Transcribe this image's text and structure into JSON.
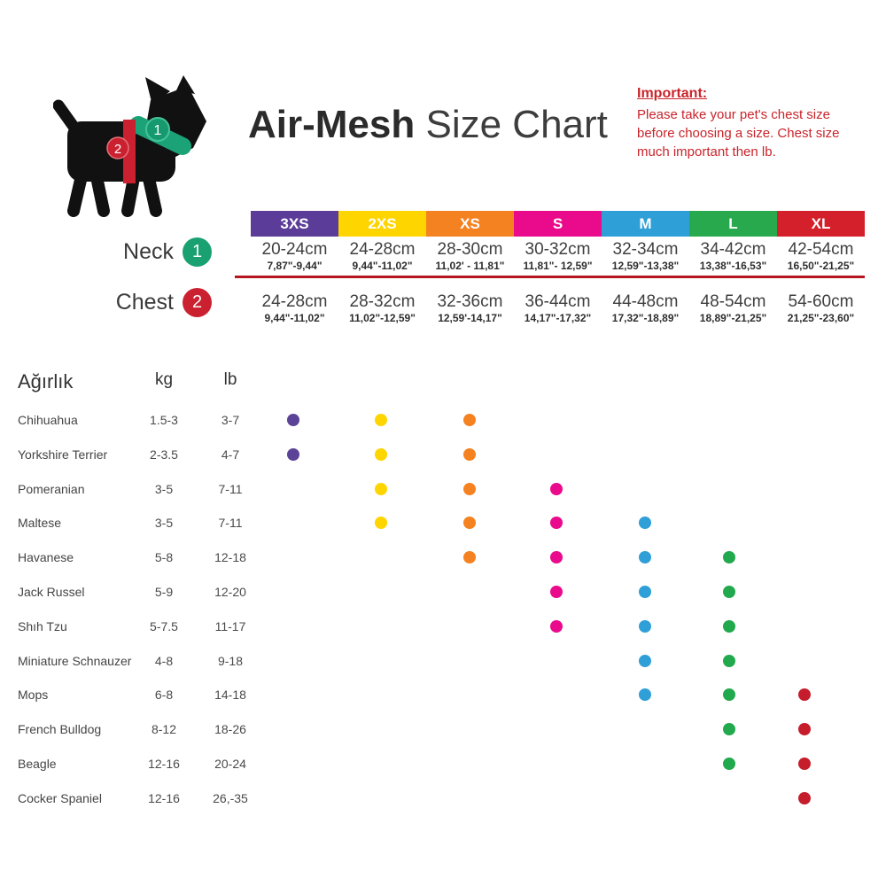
{
  "header": {
    "title_bold": "Air-Mesh",
    "title_light": " Size Chart",
    "important": {
      "heading": "Important:",
      "lines": [
        "Please take your pet's chest size",
        "before choosing a size. Chest size",
        "much important then lb."
      ],
      "color": "#c9242b"
    },
    "dog_badges": {
      "neck": "1",
      "chest": "2"
    },
    "dog_colors": {
      "body": "#111111",
      "collar": "#1ba377",
      "strap": "#cb2030"
    }
  },
  "size_table": {
    "row_labels": {
      "neck": "Neck",
      "neck_badge": "1",
      "chest": "Chest",
      "chest_badge": "2"
    },
    "badge_colors": {
      "neck": "#19a171",
      "chest": "#cb2030"
    },
    "divider_color": "#b5161f",
    "sizes": [
      {
        "label": "3XS",
        "bar_color": "#5b3d99",
        "dot_color": "#5b4397",
        "neck_cm": "20-24cm",
        "neck_in": "7,87\"-9,44\"",
        "chest_cm": "24-28cm",
        "chest_in": "9,44\"-11,02\""
      },
      {
        "label": "2XS",
        "bar_color": "#ffd500",
        "dot_color": "#ffd500",
        "neck_cm": "24-28cm",
        "neck_in": "9,44\"-11,02\"",
        "chest_cm": "28-32cm",
        "chest_in": "11,02\"-12,59\""
      },
      {
        "label": "XS",
        "bar_color": "#f58220",
        "dot_color": "#f58220",
        "neck_cm": "28-30cm",
        "neck_in": "11,02' - 11,81\"",
        "chest_cm": "32-36cm",
        "chest_in": "12,59'-14,17\""
      },
      {
        "label": "S",
        "bar_color": "#ea0a8c",
        "dot_color": "#ea0a8c",
        "neck_cm": "30-32cm",
        "neck_in": "11,81\"- 12,59\"",
        "chest_cm": "36-44cm",
        "chest_in": "14,17\"-17,32\""
      },
      {
        "label": "M",
        "bar_color": "#2f9fd7",
        "dot_color": "#2f9fd7",
        "neck_cm": "32-34cm",
        "neck_in": "12,59\"-13,38\"",
        "chest_cm": "44-48cm",
        "chest_in": "17,32\"-18,89\""
      },
      {
        "label": "L",
        "bar_color": "#28a94d",
        "dot_color": "#22a94e",
        "neck_cm": "34-42cm",
        "neck_in": "13,38\"-16,53\"",
        "chest_cm": "48-54cm",
        "chest_in": "18,89\"-21,25\""
      },
      {
        "label": "XL",
        "bar_color": "#d3202b",
        "dot_color": "#c51d2b",
        "neck_cm": "42-54cm",
        "neck_in": "16,50\"-21,25\"",
        "chest_cm": "54-60cm",
        "chest_in": "21,25\"-23,60\""
      }
    ]
  },
  "breed_table": {
    "headers": {
      "breed": "Ağırlık",
      "kg": "kg",
      "lb": "lb"
    },
    "rows": [
      {
        "breed": "Chihuahua",
        "kg": "1.5-3",
        "lb": "3-7",
        "sizes": [
          "3XS",
          "2XS",
          "XS"
        ]
      },
      {
        "breed": "Yorkshire Terrier",
        "kg": "2-3.5",
        "lb": "4-7",
        "sizes": [
          "3XS",
          "2XS",
          "XS"
        ]
      },
      {
        "breed": "Pomeranian",
        "kg": "3-5",
        "lb": "7-11",
        "sizes": [
          "2XS",
          "XS",
          "S"
        ]
      },
      {
        "breed": "Maltese",
        "kg": "3-5",
        "lb": "7-11",
        "sizes": [
          "2XS",
          "XS",
          "S",
          "M"
        ]
      },
      {
        "breed": "Havanese",
        "kg": "5-8",
        "lb": "12-18",
        "sizes": [
          "XS",
          "S",
          "M",
          "L"
        ]
      },
      {
        "breed": "Jack Russel",
        "kg": "5-9",
        "lb": "12-20",
        "sizes": [
          "S",
          "M",
          "L"
        ]
      },
      {
        "breed": "Shıh Tzu",
        "kg": "5-7.5",
        "lb": "11-17",
        "sizes": [
          "S",
          "M",
          "L"
        ]
      },
      {
        "breed": "Miniature Schnauzer",
        "kg": "4-8",
        "lb": "9-18",
        "sizes": [
          "M",
          "L"
        ]
      },
      {
        "breed": "Mops",
        "kg": "6-8",
        "lb": "14-18",
        "sizes": [
          "M",
          "L",
          "XL"
        ]
      },
      {
        "breed": "French Bulldog",
        "kg": "8-12",
        "lb": "18-26",
        "sizes": [
          "L",
          "XL"
        ]
      },
      {
        "breed": "Beagle",
        "kg": "12-16",
        "lb": "20-24",
        "sizes": [
          "L",
          "XL"
        ]
      },
      {
        "breed": "Cocker Spaniel",
        "kg": "12-16",
        "lb": "26,-35",
        "sizes": [
          "XL"
        ]
      }
    ]
  },
  "chart_data": {
    "type": "table",
    "title": "Air-Mesh Size Chart",
    "columns": [
      "3XS",
      "2XS",
      "XS",
      "S",
      "M",
      "L",
      "XL"
    ],
    "neck_cm": [
      "20-24",
      "24-28",
      "28-30",
      "30-32",
      "32-34",
      "34-42",
      "42-54"
    ],
    "chest_cm": [
      "24-28",
      "28-32",
      "32-36",
      "36-44",
      "44-48",
      "48-54",
      "54-60"
    ],
    "rows": [
      {
        "breed": "Chihuahua",
        "kg": "1.5-3",
        "lb": "3-7",
        "fits": [
          "3XS",
          "2XS",
          "XS"
        ]
      },
      {
        "breed": "Yorkshire Terrier",
        "kg": "2-3.5",
        "lb": "4-7",
        "fits": [
          "3XS",
          "2XS",
          "XS"
        ]
      },
      {
        "breed": "Pomeranian",
        "kg": "3-5",
        "lb": "7-11",
        "fits": [
          "2XS",
          "XS",
          "S"
        ]
      },
      {
        "breed": "Maltese",
        "kg": "3-5",
        "lb": "7-11",
        "fits": [
          "2XS",
          "XS",
          "S",
          "M"
        ]
      },
      {
        "breed": "Havanese",
        "kg": "5-8",
        "lb": "12-18",
        "fits": [
          "XS",
          "S",
          "M",
          "L"
        ]
      },
      {
        "breed": "Jack Russel",
        "kg": "5-9",
        "lb": "12-20",
        "fits": [
          "S",
          "M",
          "L"
        ]
      },
      {
        "breed": "Shıh Tzu",
        "kg": "5-7.5",
        "lb": "11-17",
        "fits": [
          "S",
          "M",
          "L"
        ]
      },
      {
        "breed": "Miniature Schnauzer",
        "kg": "4-8",
        "lb": "9-18",
        "fits": [
          "M",
          "L"
        ]
      },
      {
        "breed": "Mops",
        "kg": "6-8",
        "lb": "14-18",
        "fits": [
          "M",
          "L",
          "XL"
        ]
      },
      {
        "breed": "French Bulldog",
        "kg": "8-12",
        "lb": "18-26",
        "fits": [
          "L",
          "XL"
        ]
      },
      {
        "breed": "Beagle",
        "kg": "12-16",
        "lb": "20-24",
        "fits": [
          "L",
          "XL"
        ]
      },
      {
        "breed": "Cocker Spaniel",
        "kg": "12-16",
        "lb": "26,-35",
        "fits": [
          "XL"
        ]
      }
    ]
  }
}
